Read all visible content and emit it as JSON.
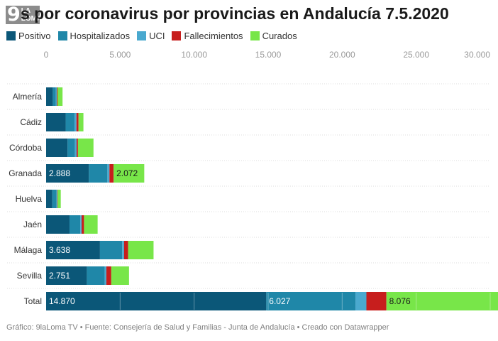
{
  "logo": {
    "number": "9",
    "line1": "LA",
    "line2": "LOMA"
  },
  "chart_data": {
    "type": "bar",
    "orientation": "horizontal",
    "stacked": true,
    "title": "Casos por coronavirus por provincias en Andalucía 7.5.2020",
    "visible_title": "s por coronavirus por provincias en Andalucía 7.5.2020",
    "categories": [
      "Almería",
      "Cádiz",
      "Córdoba",
      "Granada",
      "Huelva",
      "Jaén",
      "Málaga",
      "Sevilla",
      "Total"
    ],
    "series": [
      {
        "name": "Positivo",
        "color": "#0b5778",
        "values": [
          450,
          1320,
          1450,
          2888,
          420,
          1580,
          3638,
          2751,
          14870
        ]
      },
      {
        "name": "Hospitalizados",
        "color": "#1f87a8",
        "values": [
          200,
          600,
          500,
          1250,
          280,
          730,
          1500,
          1200,
          6027
        ]
      },
      {
        "name": "UCI",
        "color": "#4aa9cf",
        "values": [
          70,
          130,
          110,
          140,
          50,
          90,
          130,
          120,
          740
        ]
      },
      {
        "name": "Fallecimientos",
        "color": "#c71e1d",
        "values": [
          50,
          140,
          90,
          280,
          30,
          160,
          270,
          330,
          1350
        ]
      },
      {
        "name": "Curados",
        "color": "#78e649",
        "values": [
          340,
          330,
          1050,
          2072,
          210,
          920,
          1720,
          1200,
          8076
        ]
      }
    ],
    "data_labels": [
      {
        "category": "Granada",
        "series": "Positivo",
        "text": "2.888"
      },
      {
        "category": "Granada",
        "series": "Curados",
        "text": "2.072"
      },
      {
        "category": "Málaga",
        "series": "Positivo",
        "text": "3.638"
      },
      {
        "category": "Sevilla",
        "series": "Positivo",
        "text": "2.751"
      },
      {
        "category": "Total",
        "series": "Positivo",
        "text": "14.870"
      },
      {
        "category": "Total",
        "series": "Hospitalizados",
        "text": "6.027"
      },
      {
        "category": "Total",
        "series": "Curados",
        "text": "8.076"
      }
    ],
    "xlim": [
      0,
      30000
    ],
    "xticks": [
      0,
      5000,
      10000,
      15000,
      20000,
      25000,
      30000
    ],
    "xtick_labels": [
      "0",
      "5.000",
      "10.000",
      "15.000",
      "20.000",
      "25.000",
      "30.000"
    ],
    "grid": true,
    "legend_position": "top-left"
  },
  "footer": "Gráfico: 9laLoma TV • Fuente: Consejería de Salud y Familias - Junta de Andalucía • Creado con Datawrapper"
}
